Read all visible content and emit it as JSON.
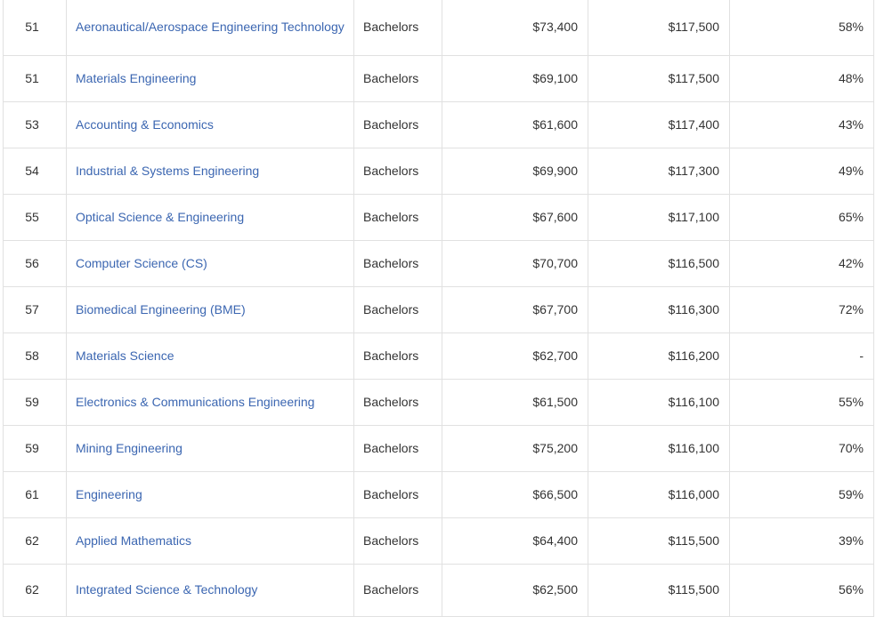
{
  "rows": [
    {
      "rank": "51",
      "major": "Aeronautical/Aerospace Engineering Technology",
      "degree": "Bachelors",
      "early_pay": "$73,400",
      "mid_pay": "$117,500",
      "meaning": "58%"
    },
    {
      "rank": "51",
      "major": "Materials Engineering",
      "degree": "Bachelors",
      "early_pay": "$69,100",
      "mid_pay": "$117,500",
      "meaning": "48%"
    },
    {
      "rank": "53",
      "major": "Accounting & Economics",
      "degree": "Bachelors",
      "early_pay": "$61,600",
      "mid_pay": "$117,400",
      "meaning": "43%"
    },
    {
      "rank": "54",
      "major": "Industrial & Systems Engineering",
      "degree": "Bachelors",
      "early_pay": "$69,900",
      "mid_pay": "$117,300",
      "meaning": "49%"
    },
    {
      "rank": "55",
      "major": "Optical Science & Engineering",
      "degree": "Bachelors",
      "early_pay": "$67,600",
      "mid_pay": "$117,100",
      "meaning": "65%"
    },
    {
      "rank": "56",
      "major": "Computer Science (CS)",
      "degree": "Bachelors",
      "early_pay": "$70,700",
      "mid_pay": "$116,500",
      "meaning": "42%"
    },
    {
      "rank": "57",
      "major": "Biomedical Engineering (BME)",
      "degree": "Bachelors",
      "early_pay": "$67,700",
      "mid_pay": "$116,300",
      "meaning": "72%"
    },
    {
      "rank": "58",
      "major": "Materials Science",
      "degree": "Bachelors",
      "early_pay": "$62,700",
      "mid_pay": "$116,200",
      "meaning": "-"
    },
    {
      "rank": "59",
      "major": "Electronics & Communications Engineering",
      "degree": "Bachelors",
      "early_pay": "$61,500",
      "mid_pay": "$116,100",
      "meaning": "55%"
    },
    {
      "rank": "59",
      "major": "Mining Engineering",
      "degree": "Bachelors",
      "early_pay": "$75,200",
      "mid_pay": "$116,100",
      "meaning": "70%"
    },
    {
      "rank": "61",
      "major": "Engineering",
      "degree": "Bachelors",
      "early_pay": "$66,500",
      "mid_pay": "$116,000",
      "meaning": "59%"
    },
    {
      "rank": "62",
      "major": "Applied Mathematics",
      "degree": "Bachelors",
      "early_pay": "$64,400",
      "mid_pay": "$115,500",
      "meaning": "39%"
    },
    {
      "rank": "62",
      "major": "Integrated Science & Technology",
      "degree": "Bachelors",
      "early_pay": "$62,500",
      "mid_pay": "$115,500",
      "meaning": "56%"
    }
  ]
}
